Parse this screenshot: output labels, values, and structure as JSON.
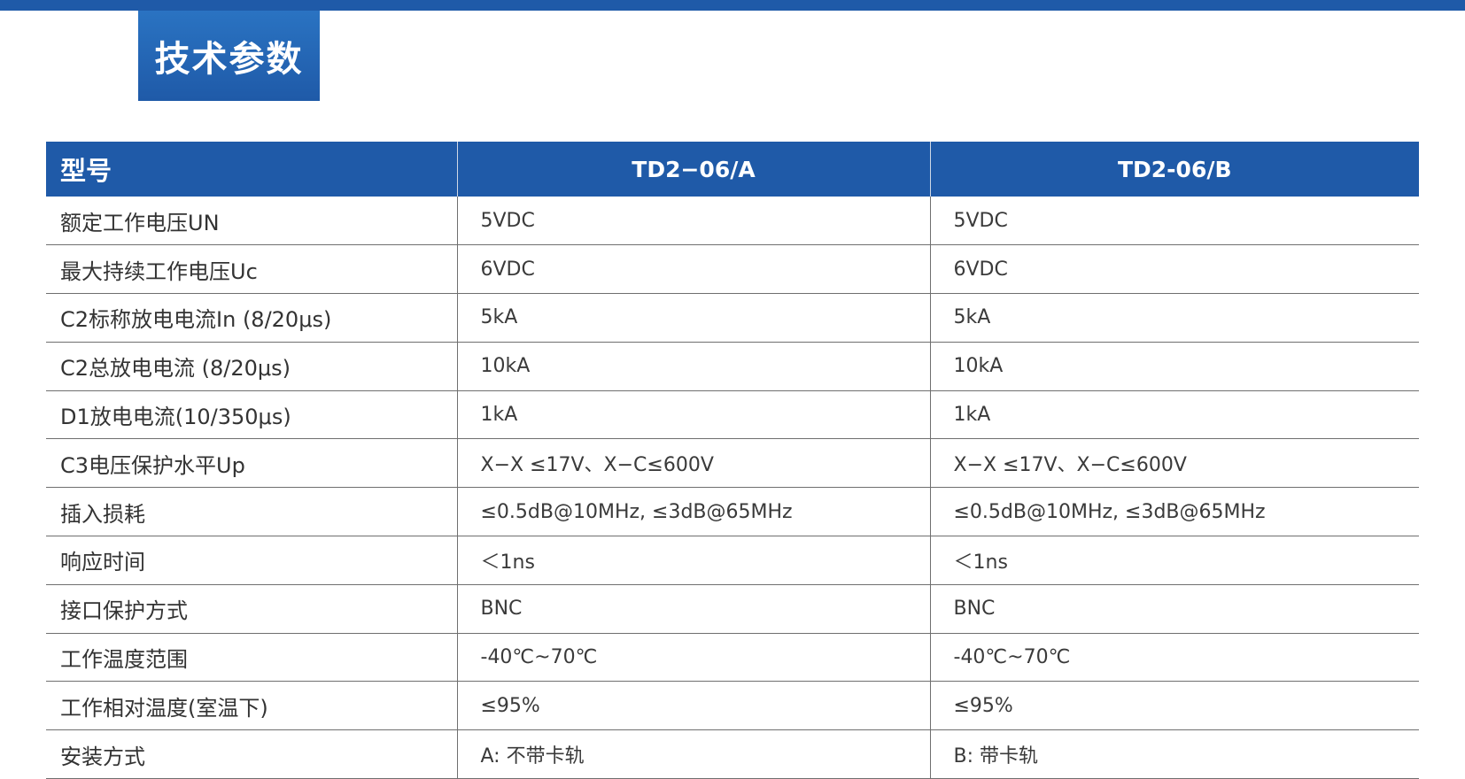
{
  "section_title": "技术参数",
  "table": {
    "headers": [
      "型号",
      "TD2−06/A",
      "TD2-06/B"
    ],
    "rows": [
      [
        "额定工作电压UN",
        "5VDC",
        "5VDC"
      ],
      [
        "最大持续工作电压Uc",
        "6VDC",
        "6VDC"
      ],
      [
        "C2标称放电电流In (8/20μs)",
        "5kA",
        "5kA"
      ],
      [
        "C2总放电电流 (8/20μs)",
        "10kA",
        "10kA"
      ],
      [
        "D1放电电流(10/350μs)",
        "1kA",
        "1kA"
      ],
      [
        "C3电压保护水平Up",
        "X−X ≤17V、X−C≤600V",
        "X−X ≤17V、X−C≤600V"
      ],
      [
        "插入损耗",
        "≤0.5dB@10MHz, ≤3dB@65MHz",
        "≤0.5dB@10MHz, ≤3dB@65MHz"
      ],
      [
        "响应时间",
        "＜1ns",
        "＜1ns"
      ],
      [
        "接口保护方式",
        "BNC",
        "BNC"
      ],
      [
        "工作温度范围",
        "-40℃~70℃",
        "-40℃~70℃"
      ],
      [
        "工作相对温度(室温下)",
        "≤95%",
        "≤95%"
      ],
      [
        "安装方式",
        "A: 不带卡轨",
        "B: 带卡轨"
      ]
    ]
  },
  "colors": {
    "brand_blue": "#1f5aa8",
    "header_text": "#ffffff",
    "body_text": "#333333",
    "grid_line": "#6f6f6f"
  }
}
